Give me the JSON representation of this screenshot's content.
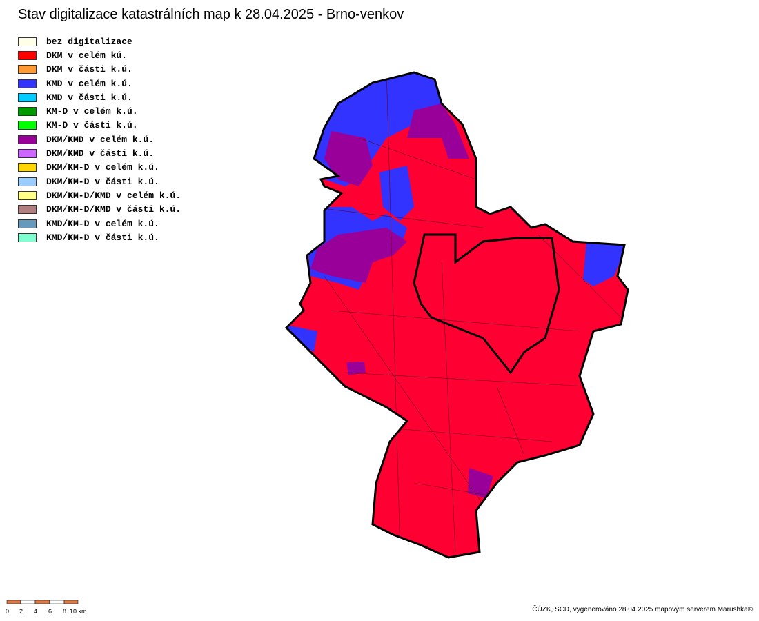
{
  "header": {
    "title": "Stav digitalizace katastrálních map k 28.04.2025 - Brno-venkov"
  },
  "legend": [
    {
      "label": "bez digitalizace",
      "color": "#ffffe8"
    },
    {
      "label": "DKM v celém kú.",
      "color": "#ff0000"
    },
    {
      "label": "DKM v části k.ú.",
      "color": "#ff9933"
    },
    {
      "label": "KMD v celém k.ú.",
      "color": "#3333ff"
    },
    {
      "label": "KMD v části k.ú.",
      "color": "#00ccff"
    },
    {
      "label": "KM-D v celém k.ú.",
      "color": "#009900"
    },
    {
      "label": "KM-D v části k.ú.",
      "color": "#00ff00"
    },
    {
      "label": "DKM/KMD v celém k.ú.",
      "color": "#990099"
    },
    {
      "label": "DKM/KMD v části k.ú.",
      "color": "#cc66ff"
    },
    {
      "label": "DKM/KM-D v celém k.ú.",
      "color": "#ffd700"
    },
    {
      "label": "DKM/KM-D v části k.ú.",
      "color": "#99ccff"
    },
    {
      "label": "DKM/KM-D/KMD v celém k.ú.",
      "color": "#ffff88"
    },
    {
      "label": "DKM/KM-D/KMD v části k.ú.",
      "color": "#b08080"
    },
    {
      "label": "KMD/KM-D v celém k.ú.",
      "color": "#6699bb"
    },
    {
      "label": "KMD/KM-D v části k.ú.",
      "color": "#80ffd0"
    }
  ],
  "scale_bar": {
    "labels": [
      "0",
      "2",
      "4",
      "6",
      "8",
      "10 km"
    ]
  },
  "footer": {
    "credit": "ČÚZK, SCD, vygenerováno 28.04.2025 mapovým serverem Marushka®"
  }
}
